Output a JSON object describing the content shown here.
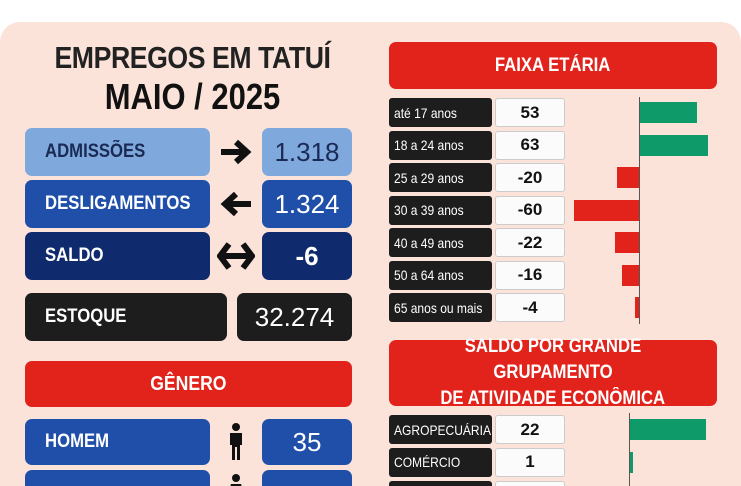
{
  "header": {
    "title_line1": "EMPREGOS EM TATUÍ",
    "title_line2": "MAIO / 2025"
  },
  "summary": {
    "admissoes": {
      "label": "ADMISSÕES",
      "value": "1.318",
      "icon": "arrow-right-icon"
    },
    "desligamentos": {
      "label": "DESLIGAMENTOS",
      "value": "1.324",
      "icon": "arrow-left-icon"
    },
    "saldo": {
      "label": "SALDO",
      "value": "-6",
      "icon": "double-arrow-icon"
    },
    "estoque": {
      "label": "ESTOQUE",
      "value": "32.274"
    }
  },
  "genero": {
    "title": "GÊNERO",
    "homem": {
      "label": "HOMEM",
      "value": "35",
      "icon": "man-icon"
    },
    "mulher": {
      "icon": "woman-icon"
    }
  },
  "faixa_etaria": {
    "title": "FAIXA ETÁRIA",
    "rows": [
      {
        "label": "até 17 anos",
        "value": "53"
      },
      {
        "label": "18 a 24 anos",
        "value": "63"
      },
      {
        "label": "25 a 29 anos",
        "value": "-20"
      },
      {
        "label": "30 a 39 anos",
        "value": "-60"
      },
      {
        "label": "40 a 49 anos",
        "value": "-22"
      },
      {
        "label": "50 a 64 anos",
        "value": "-16"
      },
      {
        "label": "65 anos ou mais",
        "value": "-4"
      }
    ]
  },
  "grupamento": {
    "title_line1": "SALDO POR GRANDE GRUPAMENTO",
    "title_line2": "DE ATIVIDADE ECONÔMICA",
    "rows": [
      {
        "label": "AGROPECUÁRIA",
        "value": "22"
      },
      {
        "label": "COMÉRCIO",
        "value": "1"
      }
    ]
  },
  "chart_data": [
    {
      "type": "bar",
      "title": "FAIXA ETÁRIA",
      "categories": [
        "até 17 anos",
        "18 a 24 anos",
        "25 a 29 anos",
        "30 a 39 anos",
        "40 a 49 anos",
        "50 a 64 anos",
        "65 anos ou mais"
      ],
      "values": [
        53,
        63,
        -20,
        -60,
        -22,
        -16,
        -4
      ],
      "colors": {
        "positive": "#0f9a6a",
        "negative": "#e1231b"
      }
    },
    {
      "type": "bar",
      "title": "SALDO POR GRANDE GRUPAMENTO DE ATIVIDADE ECONÔMICA",
      "categories": [
        "AGROPECUÁRIA",
        "COMÉRCIO"
      ],
      "values": [
        22,
        1
      ],
      "colors": {
        "positive": "#0f9a6a",
        "negative": "#e1231b"
      }
    }
  ],
  "colors": {
    "background": "#fbe3da",
    "red": "#e1231b",
    "green": "#0f9a6a",
    "dark_blue": "#102b6d",
    "mid_blue": "#1f4fa8",
    "light_blue": "#7fa8dc",
    "black": "#1e1d1d"
  }
}
